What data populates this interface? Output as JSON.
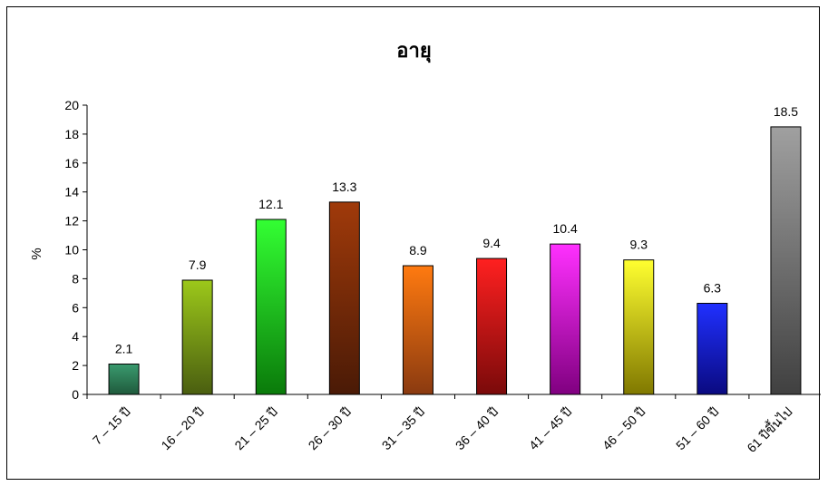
{
  "chart_data": {
    "type": "bar",
    "title": "อายุ",
    "xlabel": "",
    "ylabel": "%",
    "ylim": [
      0,
      20
    ],
    "yticks": [
      "0",
      "2",
      "4",
      "6",
      "8",
      "10",
      "12",
      "14",
      "16",
      "18",
      "20"
    ],
    "categories": [
      "7 – 15 ปี",
      "16 – 20 ปี",
      "21 – 25 ปี",
      "26 – 30 ปี",
      "31 – 35 ปี",
      "36 – 40 ปี",
      "41 – 45 ปี",
      "46 – 50 ปี",
      "51 – 60 ปี",
      "61 ปีขึ้นไป"
    ],
    "values": [
      2.1,
      7.9,
      12.1,
      13.3,
      8.9,
      9.4,
      10.4,
      9.3,
      6.3,
      18.5
    ],
    "value_labels": [
      "2.1",
      "7.9",
      "12.1",
      "13.3",
      "8.9",
      "9.4",
      "10.4",
      "9.3",
      "6.3",
      "18.5"
    ],
    "bar_colors": [
      [
        "#3a9a6e",
        "#1f5a3c"
      ],
      [
        "#9cc81a",
        "#4a5e10"
      ],
      [
        "#33ff33",
        "#0a7a0a"
      ],
      [
        "#a03a0a",
        "#4a1a06"
      ],
      [
        "#ff7a10",
        "#8a3a10"
      ],
      [
        "#ff2020",
        "#7a0a0a"
      ],
      [
        "#ff30ff",
        "#800080"
      ],
      [
        "#ffff30",
        "#807800"
      ],
      [
        "#2030ff",
        "#0a0a80"
      ],
      [
        "#a0a0a0",
        "#404040"
      ]
    ],
    "grid": false,
    "legend": "none"
  }
}
